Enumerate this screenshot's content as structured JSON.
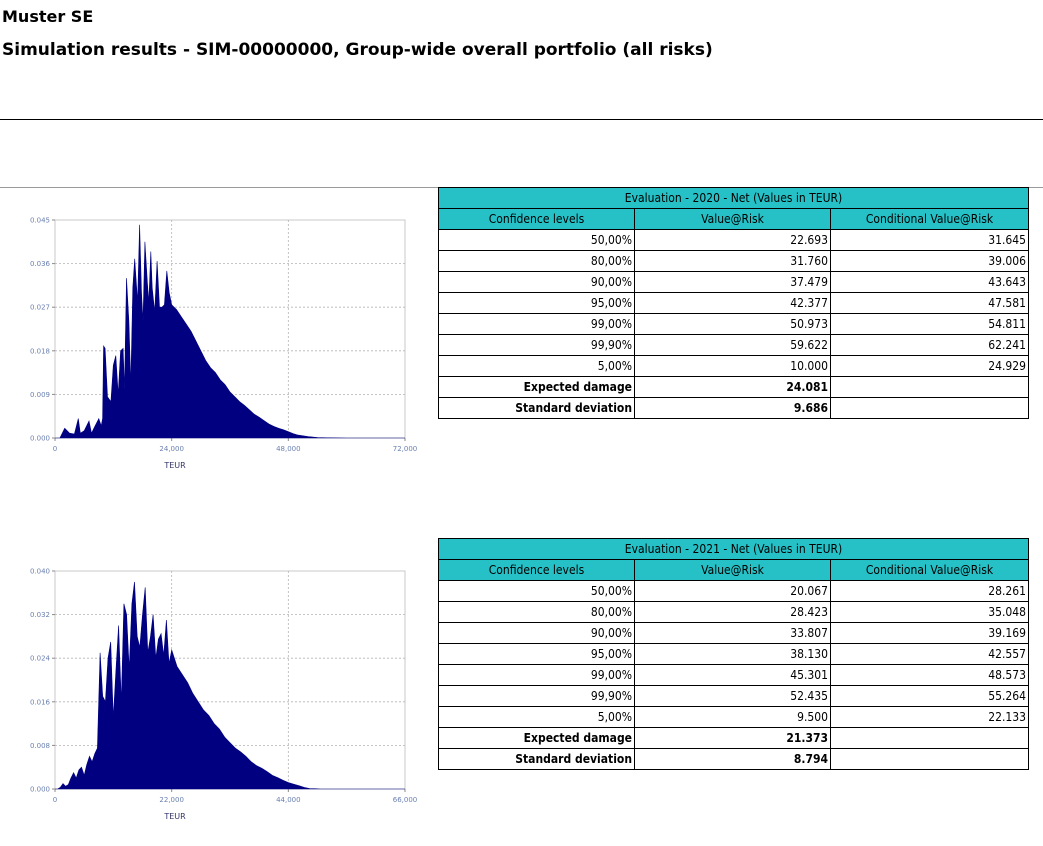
{
  "header": {
    "company": "Muster SE",
    "title": "Simulation results - SIM-00000000, Group-wide overall portfolio (all risks)"
  },
  "chart_data": [
    {
      "type": "area",
      "title": "",
      "xlabel": "TEUR",
      "ylabel": "",
      "xlim": [
        0,
        72000
      ],
      "ylim": [
        0,
        0.045
      ],
      "x_ticks": [
        "0",
        "24,000",
        "48,000",
        "72,000"
      ],
      "y_ticks": [
        "0.000",
        "0.009",
        "0.018",
        "0.027",
        "0.036",
        "0.045"
      ],
      "grid": true,
      "color": "#000080",
      "x": [
        0,
        1000,
        2000,
        3000,
        4000,
        4800,
        5200,
        6000,
        7000,
        7500,
        8000,
        9000,
        9500,
        9800,
        10000,
        10300,
        10800,
        11500,
        12000,
        12500,
        13000,
        13500,
        14000,
        14300,
        14700,
        15200,
        15600,
        16000,
        16400,
        17000,
        17400,
        17800,
        18100,
        18500,
        19000,
        19300,
        19700,
        20000,
        20500,
        21000,
        21500,
        22000,
        22500,
        23000,
        23500,
        24000,
        25000,
        26000,
        27000,
        28000,
        29000,
        30000,
        31000,
        32000,
        33000,
        34000,
        35000,
        36000,
        37000,
        38000,
        39000,
        40000,
        41000,
        42000,
        43000,
        44000,
        45000,
        46000,
        47000,
        48000,
        49000,
        50000,
        52000,
        54000,
        56000,
        58000,
        60000,
        72000
      ],
      "values": [
        0,
        0,
        0.002,
        0.001,
        0.0008,
        0.004,
        0.001,
        0.0015,
        0.0035,
        0.001,
        0.002,
        0.004,
        0.0025,
        0.004,
        0.019,
        0.0185,
        0.0085,
        0.0075,
        0.015,
        0.017,
        0.009,
        0.018,
        0.0185,
        0.01,
        0.033,
        0.024,
        0.011,
        0.031,
        0.037,
        0.028,
        0.044,
        0.03,
        0.024,
        0.0405,
        0.032,
        0.028,
        0.0385,
        0.031,
        0.026,
        0.0365,
        0.027,
        0.027,
        0.0275,
        0.0345,
        0.03,
        0.0275,
        0.0265,
        0.025,
        0.0235,
        0.022,
        0.02,
        0.018,
        0.016,
        0.0145,
        0.0135,
        0.012,
        0.011,
        0.0095,
        0.0085,
        0.0075,
        0.0067,
        0.0058,
        0.0049,
        0.0043,
        0.0036,
        0.0029,
        0.0024,
        0.002,
        0.0017,
        0.0013,
        0.0009,
        0.0006,
        0.0003,
        0.0001,
        5e-05,
        2e-05,
        0,
        0
      ]
    },
    {
      "type": "area",
      "title": "",
      "xlabel": "TEUR",
      "ylabel": "",
      "xlim": [
        0,
        66000
      ],
      "ylim": [
        0,
        0.04
      ],
      "x_ticks": [
        "0",
        "22,000",
        "44,000",
        "66,000"
      ],
      "y_ticks": [
        "0.000",
        "0.008",
        "0.016",
        "0.024",
        "0.032",
        "0.040"
      ],
      "grid": true,
      "color": "#000080",
      "x": [
        0,
        500,
        1000,
        1500,
        2000,
        2500,
        3000,
        3500,
        4000,
        4500,
        5000,
        5500,
        6000,
        6500,
        7000,
        7500,
        8000,
        8500,
        9000,
        9500,
        10000,
        10500,
        11000,
        11500,
        12000,
        12500,
        13000,
        13500,
        14000,
        14500,
        15000,
        15500,
        16000,
        16500,
        17000,
        17500,
        18000,
        18500,
        19000,
        19500,
        20000,
        20500,
        21000,
        21500,
        22000,
        23000,
        24000,
        25000,
        26000,
        27000,
        28000,
        29000,
        30000,
        31000,
        32000,
        33000,
        34000,
        35000,
        36000,
        37000,
        38000,
        39000,
        40000,
        41000,
        42000,
        43000,
        44000,
        45000,
        46000,
        47000,
        48000,
        49000,
        50000,
        52000,
        54000,
        66000
      ],
      "values": [
        0,
        0,
        0.0003,
        0.001,
        0.0005,
        0.0008,
        0.002,
        0.003,
        0.002,
        0.0035,
        0.004,
        0.0025,
        0.0045,
        0.006,
        0.005,
        0.0065,
        0.0075,
        0.025,
        0.017,
        0.016,
        0.024,
        0.027,
        0.013,
        0.022,
        0.03,
        0.016,
        0.034,
        0.032,
        0.022,
        0.034,
        0.038,
        0.028,
        0.026,
        0.032,
        0.037,
        0.025,
        0.028,
        0.032,
        0.024,
        0.0275,
        0.0285,
        0.0245,
        0.031,
        0.023,
        0.0255,
        0.0225,
        0.021,
        0.0195,
        0.0175,
        0.016,
        0.0145,
        0.0135,
        0.012,
        0.011,
        0.0095,
        0.0085,
        0.0075,
        0.0068,
        0.006,
        0.005,
        0.0043,
        0.0038,
        0.0032,
        0.0025,
        0.0021,
        0.0016,
        0.0012,
        0.0009,
        0.0006,
        0.0003,
        0.0001,
        5e-05,
        0,
        0,
        0,
        0
      ]
    }
  ],
  "evaluations": [
    {
      "caption": "Evaluation - 2020 - Net (Values in TEUR)",
      "columns": [
        "Confidence levels",
        "Value@Risk",
        "Conditional Value@Risk"
      ],
      "rows": [
        [
          "50,00%",
          "22.693",
          "31.645"
        ],
        [
          "80,00%",
          "31.760",
          "39.006"
        ],
        [
          "90,00%",
          "37.479",
          "43.643"
        ],
        [
          "95,00%",
          "42.377",
          "47.581"
        ],
        [
          "99,00%",
          "50.973",
          "54.811"
        ],
        [
          "99,90%",
          "59.622",
          "62.241"
        ],
        [
          "5,00%",
          "10.000",
          "24.929"
        ]
      ],
      "expected_damage_label": "Expected damage",
      "expected_damage": "24.081",
      "std_dev_label": "Standard deviation",
      "std_dev": "9.686"
    },
    {
      "caption": "Evaluation - 2021 - Net (Values in TEUR)",
      "columns": [
        "Confidence levels",
        "Value@Risk",
        "Conditional Value@Risk"
      ],
      "rows": [
        [
          "50,00%",
          "20.067",
          "28.261"
        ],
        [
          "80,00%",
          "28.423",
          "35.048"
        ],
        [
          "90,00%",
          "33.807",
          "39.169"
        ],
        [
          "95,00%",
          "38.130",
          "42.557"
        ],
        [
          "99,00%",
          "45.301",
          "48.573"
        ],
        [
          "99,90%",
          "52.435",
          "55.264"
        ],
        [
          "5,00%",
          "9.500",
          "22.133"
        ]
      ],
      "expected_damage_label": "Expected damage",
      "expected_damage": "21.373",
      "std_dev_label": "Standard deviation",
      "std_dev": "8.794"
    }
  ]
}
